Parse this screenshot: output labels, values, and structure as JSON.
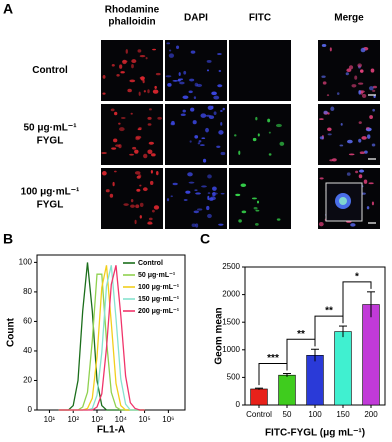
{
  "panel_a": {
    "label": "A",
    "columns": [
      [
        "Rhodamine",
        "phalloidin"
      ],
      [
        "DAPI"
      ],
      [
        "FITC"
      ],
      [
        "Merge"
      ]
    ],
    "rows": [
      [
        "Control"
      ],
      [
        "50 μg·mL⁻¹",
        "FYGL"
      ],
      [
        "100 μg·mL⁻¹",
        "FYGL"
      ]
    ]
  },
  "chart_data": [
    {
      "type": "line",
      "label": "B",
      "xlabel": "FL1-A",
      "ylabel": "Count",
      "xscale": "log",
      "x": [
        25,
        40,
        63,
        100,
        158,
        251,
        398,
        631,
        1000,
        1585,
        2512,
        3981,
        6310,
        10000,
        15849,
        25119,
        39811,
        63096,
        100000
      ],
      "series": [
        {
          "name": "Control",
          "color": "#1b6e1b",
          "values": [
            0,
            0,
            0,
            3,
            20,
            67,
            100,
            67,
            20,
            3,
            0,
            0,
            0,
            0,
            0,
            0,
            0,
            0,
            0
          ]
        },
        {
          "name": "50 μg·mL⁻¹",
          "color": "#8fd14f",
          "values": [
            0,
            0,
            0,
            0,
            0,
            2,
            12,
            47,
            92,
            92,
            47,
            12,
            2,
            0,
            0,
            0,
            0,
            0,
            0
          ]
        },
        {
          "name": "100 μg·mL⁻¹",
          "color": "#f2cf1d",
          "values": [
            0,
            0,
            0,
            0,
            0,
            0,
            1,
            8,
            36,
            83,
            98,
            59,
            18,
            3,
            0,
            0,
            0,
            0,
            0
          ]
        },
        {
          "name": "150 μg·mL⁻¹",
          "color": "#86e3cf",
          "values": [
            0,
            0,
            0,
            0,
            0,
            0,
            0,
            1,
            10,
            39,
            84,
            98,
            62,
            21,
            4,
            0,
            0,
            0,
            0
          ]
        },
        {
          "name": "200 μg·mL⁻¹",
          "color": "#f0346a",
          "values": [
            0,
            0,
            0,
            0,
            0,
            0,
            0,
            0,
            2,
            11,
            42,
            85,
            98,
            64,
            23,
            5,
            1,
            0,
            0
          ]
        }
      ],
      "xlim": [
        3,
        5000000
      ],
      "xticks": [
        {
          "value": 10,
          "label": "10¹"
        },
        {
          "value": 100,
          "label": "10²"
        },
        {
          "value": 1000,
          "label": "10³"
        },
        {
          "value": 10000,
          "label": "10⁴"
        },
        {
          "value": 100000,
          "label": "10⁵"
        },
        {
          "value": 1000000,
          "label": "10⁶"
        }
      ],
      "ylim": [
        0,
        105
      ],
      "yticks": [
        0,
        20,
        40,
        60,
        80,
        100
      ],
      "legend": "upper right"
    },
    {
      "type": "bar",
      "label": "C",
      "xlabel": "FITC-FYGL (μg mL⁻¹)",
      "ylabel": "Geom mean",
      "categories": [
        "Control",
        "50",
        "100",
        "150",
        "200"
      ],
      "values": [
        290,
        540,
        900,
        1330,
        1820
      ],
      "errors": [
        15,
        30,
        110,
        100,
        230
      ],
      "colors": [
        "#e8211a",
        "#3fcc1e",
        "#2a3ad8",
        "#40f0d0",
        "#c13ad8"
      ],
      "ylim": [
        0,
        2500
      ],
      "yticks": [
        0,
        500,
        1000,
        1500,
        2000,
        2500
      ],
      "annotations": [
        "***",
        "**",
        "**",
        "*"
      ]
    }
  ]
}
